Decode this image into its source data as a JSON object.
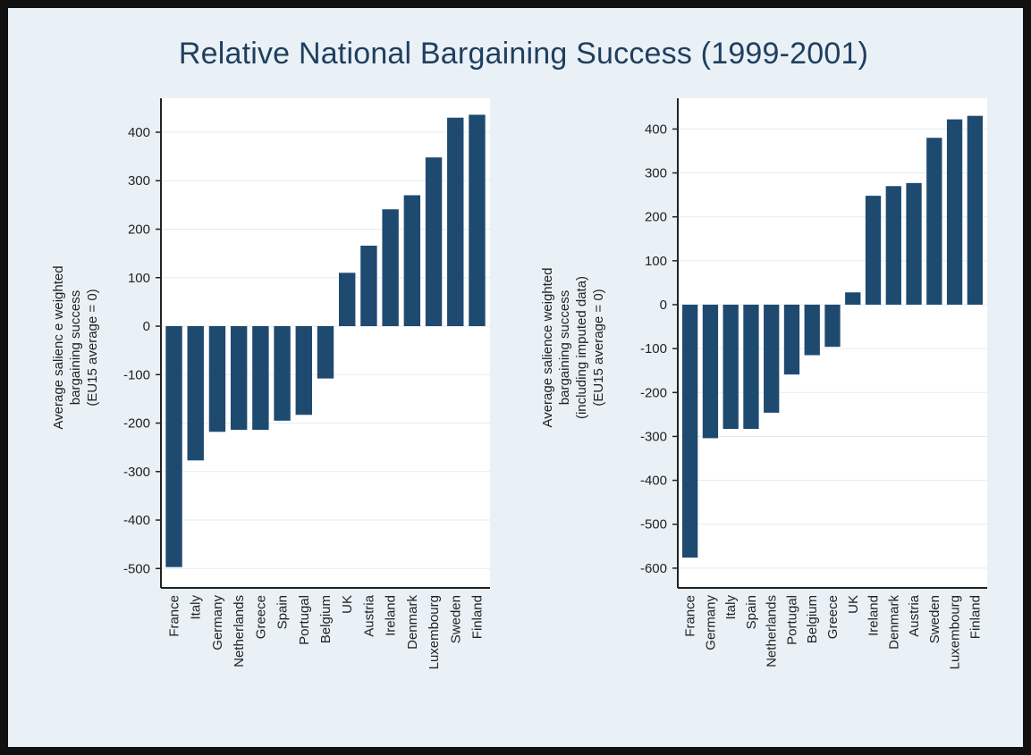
{
  "title": "Relative National Bargaining Success (1999-2001)",
  "colors": {
    "bar": "#1f4a70",
    "plot_bg": "#ffffff",
    "outer_bg": "#eaf1f6",
    "grid": "#e3ebf1",
    "axis": "#222222",
    "title": "#1f3f5f"
  },
  "chart_data": [
    {
      "type": "bar",
      "title": "",
      "ylabel": [
        "Average salienc e weighted",
        "bargaining success",
        "(EU15 average = 0)"
      ],
      "ylim": [
        -540,
        470
      ],
      "yticks": [
        400,
        300,
        200,
        100,
        0,
        -100,
        -200,
        -300,
        -400,
        -500
      ],
      "grid": true,
      "categories": [
        "France",
        "Italy",
        "Germany",
        "Netherlands",
        "Greece",
        "Spain",
        "Portugal",
        "Belgium",
        "UK",
        "Austria",
        "Ireland",
        "Denmark",
        "Luxembourg",
        "Sweden",
        "Finland"
      ],
      "values": [
        -497,
        -277,
        -218,
        -214,
        -214,
        -195,
        -183,
        -108,
        110,
        166,
        241,
        270,
        348,
        430,
        436
      ]
    },
    {
      "type": "bar",
      "title": "",
      "ylabel": [
        "Average salience weighted",
        "bargaining success",
        "(including imputed data)",
        "(EU15 average = 0)"
      ],
      "ylim": [
        -645,
        470
      ],
      "yticks": [
        400,
        300,
        200,
        100,
        0,
        -100,
        -200,
        -300,
        -400,
        -500,
        -600
      ],
      "grid": true,
      "categories": [
        "France",
        "Germany",
        "Italy",
        "Spain",
        "Netherlands",
        "Portugal",
        "Belgium",
        "Greece",
        "UK",
        "Ireland",
        "Denmark",
        "Austria",
        "Sweden",
        "Luxembourg",
        "Finland"
      ],
      "values": [
        -576,
        -304,
        -283,
        -283,
        -246,
        -159,
        -115,
        -96,
        28,
        248,
        270,
        277,
        380,
        422,
        430
      ]
    }
  ]
}
